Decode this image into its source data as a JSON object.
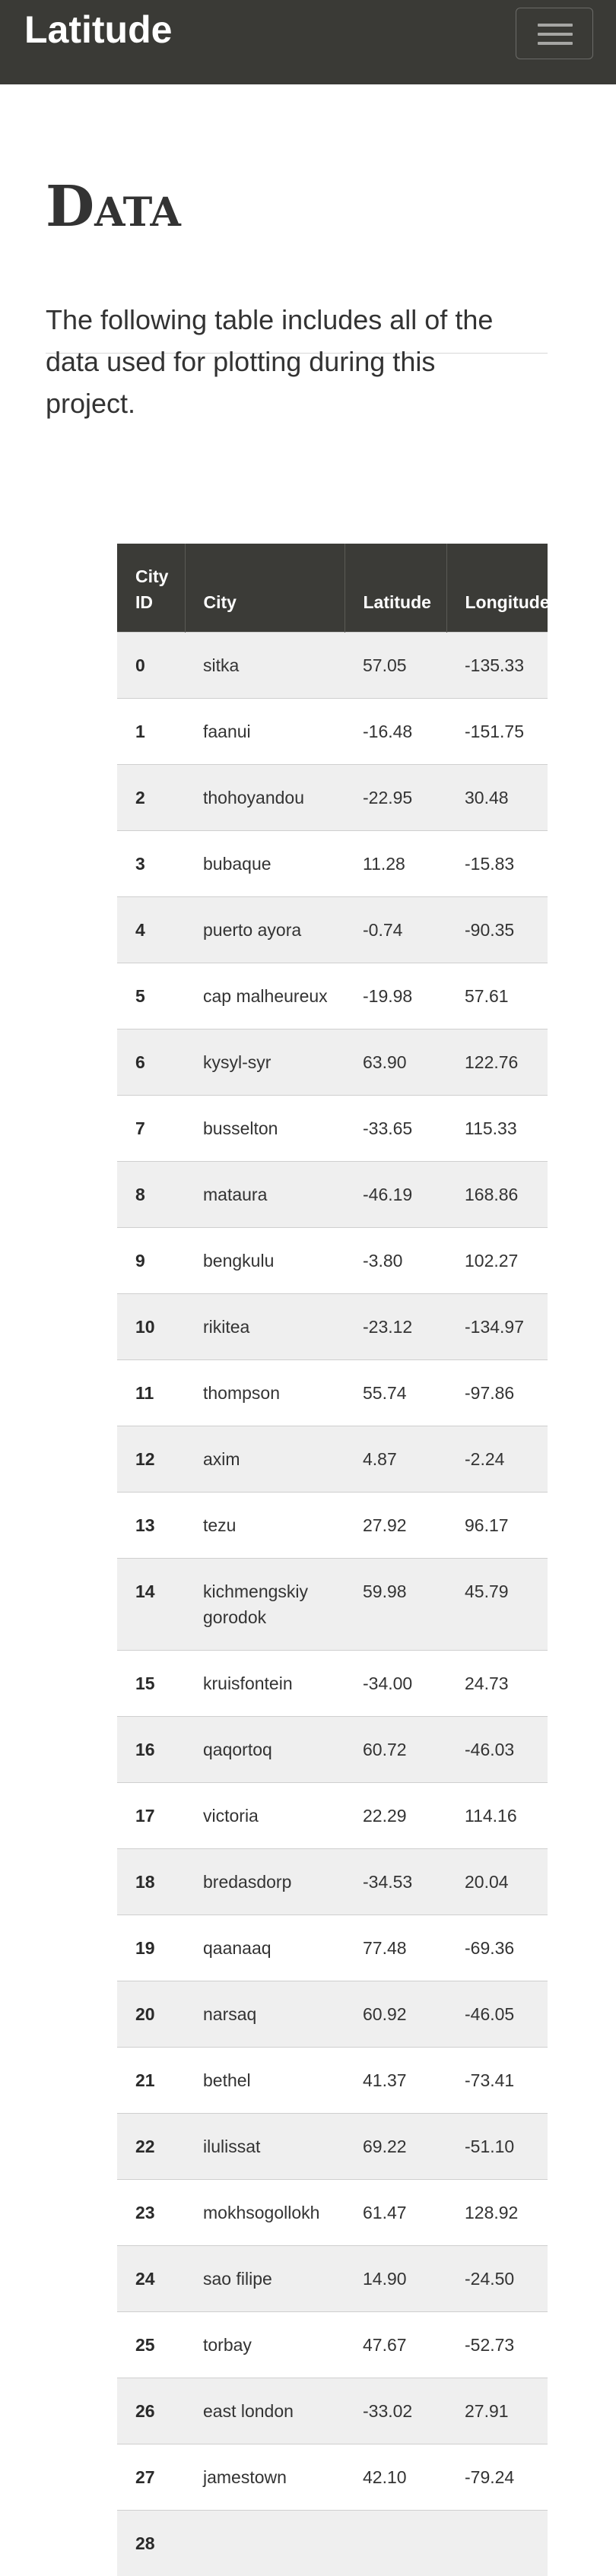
{
  "navbar": {
    "brand": "Latitude",
    "toggle_icon": "hamburger-menu-icon"
  },
  "page": {
    "title": "Data",
    "intro": "The following table includes all of the data used for plotting during this project."
  },
  "table": {
    "columns": [
      "City ID",
      "City",
      "Latitude",
      "Longitude"
    ],
    "rows": [
      [
        "0",
        "sitka",
        "57.05",
        "-135.33"
      ],
      [
        "1",
        "faanui",
        "-16.48",
        "-151.75"
      ],
      [
        "2",
        "thohoyandou",
        "-22.95",
        "30.48"
      ],
      [
        "3",
        "bubaque",
        "11.28",
        "-15.83"
      ],
      [
        "4",
        "puerto ayora",
        "-0.74",
        "-90.35"
      ],
      [
        "5",
        "cap malheureux",
        "-19.98",
        "57.61"
      ],
      [
        "6",
        "kysyl-syr",
        "63.90",
        "122.76"
      ],
      [
        "7",
        "busselton",
        "-33.65",
        "115.33"
      ],
      [
        "8",
        "mataura",
        "-46.19",
        "168.86"
      ],
      [
        "9",
        "bengkulu",
        "-3.80",
        "102.27"
      ],
      [
        "10",
        "rikitea",
        "-23.12",
        "-134.97"
      ],
      [
        "11",
        "thompson",
        "55.74",
        "-97.86"
      ],
      [
        "12",
        "axim",
        "4.87",
        "-2.24"
      ],
      [
        "13",
        "tezu",
        "27.92",
        "96.17"
      ],
      [
        "14",
        "kichmengskiy gorodok",
        "59.98",
        "45.79"
      ],
      [
        "15",
        "kruisfontein",
        "-34.00",
        "24.73"
      ],
      [
        "16",
        "qaqortoq",
        "60.72",
        "-46.03"
      ],
      [
        "17",
        "victoria",
        "22.29",
        "114.16"
      ],
      [
        "18",
        "bredasdorp",
        "-34.53",
        "20.04"
      ],
      [
        "19",
        "qaanaaq",
        "77.48",
        "-69.36"
      ],
      [
        "20",
        "narsaq",
        "60.92",
        "-46.05"
      ],
      [
        "21",
        "bethel",
        "41.37",
        "-73.41"
      ],
      [
        "22",
        "ilulissat",
        "69.22",
        "-51.10"
      ],
      [
        "23",
        "mokhsogollokh",
        "61.47",
        "128.92"
      ],
      [
        "24",
        "sao filipe",
        "14.90",
        "-24.50"
      ],
      [
        "25",
        "torbay",
        "47.67",
        "-52.73"
      ],
      [
        "26",
        "east london",
        "-33.02",
        "27.91"
      ],
      [
        "27",
        "jamestown",
        "42.10",
        "-79.24"
      ],
      [
        "28",
        "",
        "",
        ""
      ]
    ]
  }
}
